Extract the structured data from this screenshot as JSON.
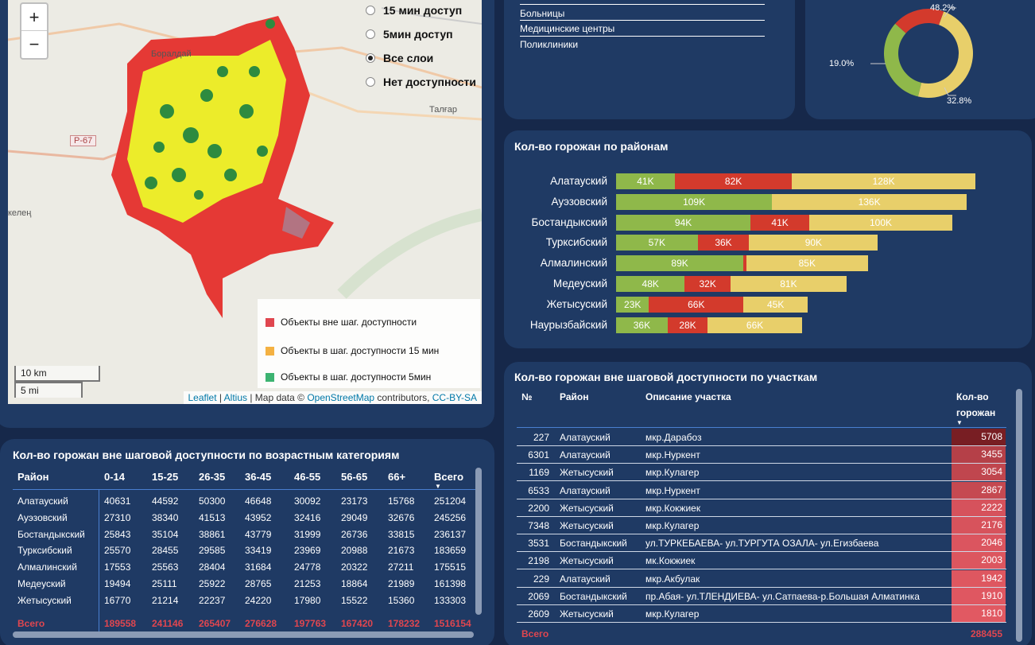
{
  "map": {
    "zoom_in": "+",
    "zoom_out": "−",
    "layers": [
      {
        "label": "15 мин доступ",
        "selected": false
      },
      {
        "label": "5мин доступ",
        "selected": false
      },
      {
        "label": "Все слои",
        "selected": true
      },
      {
        "label": "Нет доступности",
        "selected": false
      }
    ],
    "legend": [
      {
        "label": "Объекты вне шаг. доступности",
        "color": "#e0464f"
      },
      {
        "label": "Объекты в шаг. доступности 15 мин",
        "color": "#f4b142"
      },
      {
        "label": "Объекты в шаг. доступности 5мин",
        "color": "#3cb371"
      }
    ],
    "scale_km": "10 km",
    "scale_mi": "5 mi",
    "place_labels": [
      "Боралдай",
      "Талғар",
      "Р-67",
      "келең"
    ],
    "attribution": {
      "leaflet": "Leaflet",
      "sep1": " | ",
      "altius": "Altius",
      "text": " | Map data © ",
      "osm": "OpenStreetMap",
      "contrib": " contributors, ",
      "license": "CC-BY-SA"
    }
  },
  "facility_list": [
    "Больницы",
    "Медицинские центры",
    "Поликлиники"
  ],
  "donut": {
    "slices": [
      {
        "label": "48.2%",
        "value": 48.2,
        "color": "#e8cf6a"
      },
      {
        "label": "32.8%",
        "value": 32.8,
        "color": "#8fb84a"
      },
      {
        "label": "19.0%",
        "value": 19.0,
        "color": "#d33a2c"
      }
    ]
  },
  "chart_data": {
    "type": "bar",
    "title": "Кол-во горожан по районам",
    "categories": [
      "Алатауский",
      "Ауэзовский",
      "Бостандыкский",
      "Турксибский",
      "Алмалинский",
      "Медеуский",
      "Жетысуский",
      "Наурызбайский"
    ],
    "series": [
      {
        "color": "#8fb84a",
        "values": [
          41,
          109,
          94,
          57,
          89,
          48,
          23,
          36
        ],
        "labels": [
          "41K",
          "109K",
          "94K",
          "57K",
          "89K",
          "48K",
          "23K",
          "36K"
        ]
      },
      {
        "color": "#d33a2c",
        "values": [
          82,
          0,
          41,
          36,
          2,
          32,
          66,
          28
        ],
        "labels": [
          "82K",
          "",
          "41K",
          "36K",
          "",
          "32K",
          "66K",
          "28K"
        ]
      },
      {
        "color": "#e8cf6a",
        "values": [
          128,
          136,
          100,
          90,
          85,
          81,
          45,
          66
        ],
        "labels": [
          "128K",
          "136K",
          "100K",
          "90K",
          "85K",
          "81K",
          "45K",
          "66K"
        ]
      }
    ]
  },
  "age_table": {
    "title": "Кол-во горожан вне шаговой доступности по возрастным категориям",
    "headers": [
      "Район",
      "0-14",
      "15-25",
      "26-35",
      "36-45",
      "46-55",
      "56-65",
      "66+",
      "Всего"
    ],
    "rows": [
      [
        "Алатауский",
        "40631",
        "44592",
        "50300",
        "46648",
        "30092",
        "23173",
        "15768",
        "251204"
      ],
      [
        "Ауэзовский",
        "27310",
        "38340",
        "41513",
        "43952",
        "32416",
        "29049",
        "32676",
        "245256"
      ],
      [
        "Бостандыкский",
        "25843",
        "35104",
        "38861",
        "43779",
        "31999",
        "26736",
        "33815",
        "236137"
      ],
      [
        "Турксибский",
        "25570",
        "28455",
        "29585",
        "33419",
        "23969",
        "20988",
        "21673",
        "183659"
      ],
      [
        "Алмалинский",
        "17553",
        "25563",
        "28404",
        "31684",
        "24778",
        "20322",
        "27211",
        "175515"
      ],
      [
        "Медеуский",
        "19494",
        "25111",
        "25922",
        "28765",
        "21253",
        "18864",
        "21989",
        "161398"
      ],
      [
        "Жетысуский",
        "16770",
        "21214",
        "22237",
        "24220",
        "17980",
        "15522",
        "15360",
        "133303"
      ]
    ],
    "total": [
      "Всего",
      "189558",
      "241146",
      "265407",
      "276628",
      "197763",
      "167420",
      "178232",
      "1516154"
    ]
  },
  "sect_table": {
    "title": "Кол-во горожан вне шаговой доступности по участкам",
    "headers": [
      "№",
      "Район",
      "Описание участка",
      "Кол-во",
      "горожан"
    ],
    "rows": [
      [
        "227",
        "Алатауский",
        "мкр.Дарабоз",
        "5708"
      ],
      [
        "6301",
        "Алатауский",
        "мкр.Нуркент",
        "3455"
      ],
      [
        "1169",
        "Жетысуский",
        "мкр.Кулагер",
        "3054"
      ],
      [
        "6533",
        "Алатауский",
        "мкр.Нуркент",
        "2867"
      ],
      [
        "2200",
        "Жетысуский",
        "мкр.Кокжиек",
        "2222"
      ],
      [
        "7348",
        "Жетысуский",
        "мкр.Кулагер",
        "2176"
      ],
      [
        "3531",
        "Бостандыкский",
        "ул.ТУРКЕБАЕВА- ул.ТУРГУТА ОЗАЛА- ул.Егизбаева",
        "2046"
      ],
      [
        "2198",
        "Жетысуский",
        "мк.Кокжиек",
        "2003"
      ],
      [
        "229",
        "Алатауский",
        "мкр.Акбулак",
        "1942"
      ],
      [
        "2069",
        "Бостандыкский",
        "пр.Абая- ул.ТЛЕНДИЕВА- ул.Сатпаева-р.Большая Алматинка",
        "1910"
      ],
      [
        "2609",
        "Жетысуский",
        "мкр.Кулагер",
        "1810"
      ]
    ],
    "total_label": "Всего",
    "total_value": "288455"
  }
}
